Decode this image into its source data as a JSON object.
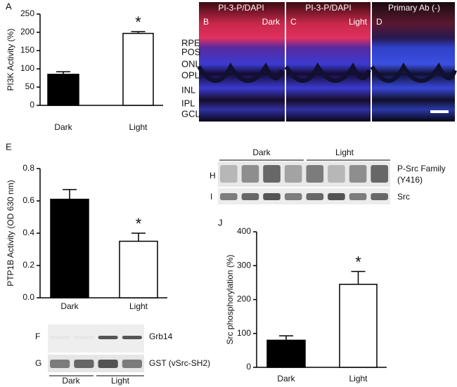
{
  "chart_data": [
    {
      "type": "bar",
      "label": "A",
      "ylabel": "PI3K Activity (%)",
      "categories": [
        "Dark",
        "Light"
      ],
      "values": [
        85,
        197
      ],
      "errors": [
        7,
        5
      ],
      "colors": [
        "#000000",
        "#ffffff"
      ],
      "annotation": "*",
      "ylim": [
        0,
        250
      ],
      "yticks": [
        0,
        50,
        100,
        150,
        200,
        250
      ]
    },
    {
      "type": "bar",
      "label": "E",
      "ylabel": "PTP1B Activity (OD 630 nm)",
      "categories": [
        "Dark",
        "Light"
      ],
      "values": [
        0.61,
        0.35
      ],
      "errors": [
        0.06,
        0.05
      ],
      "colors": [
        "#000000",
        "#ffffff"
      ],
      "annotation": "*",
      "ylim": [
        0,
        0.8
      ],
      "yticks": [
        {
          "value": 0,
          "label": "0.0"
        },
        0.2,
        0.4,
        0.6,
        0.8
      ]
    },
    {
      "type": "bar",
      "label": "J",
      "ylabel": "Src phosphorylation (%)",
      "categories": [
        "Dark",
        "Light"
      ],
      "values": [
        80,
        245
      ],
      "errors": [
        13,
        38
      ],
      "colors": [
        "#000000",
        "#ffffff"
      ],
      "annotation": "*",
      "ylim": [
        0,
        400
      ],
      "yticks": [
        0,
        100,
        200,
        300,
        400
      ]
    }
  ],
  "micrographs": {
    "panels": [
      {
        "letter": "B",
        "title": "PI-3-P/DAPI",
        "condition": "Dark"
      },
      {
        "letter": "C",
        "title": "PI-3-P/DAPI",
        "condition": "Light"
      },
      {
        "letter": "D",
        "title": "Primary Ab (-)"
      }
    ],
    "layers": [
      "RPE",
      "POS",
      "ONL",
      "OPL",
      "INL",
      "IPL",
      "GCL"
    ]
  },
  "blots": {
    "src": {
      "groups": [
        "Dark",
        "Light"
      ],
      "rows": [
        {
          "letter": "H",
          "label": "P-Src Family",
          "sublabel": "(Y416)"
        },
        {
          "letter": "I",
          "label": "Src"
        }
      ]
    },
    "grb": {
      "groups": [
        "Dark",
        "Light"
      ],
      "rows": [
        {
          "letter": "F",
          "label": "Grb14"
        },
        {
          "letter": "G",
          "label": "GST (vSrc-SH2)"
        }
      ]
    }
  }
}
